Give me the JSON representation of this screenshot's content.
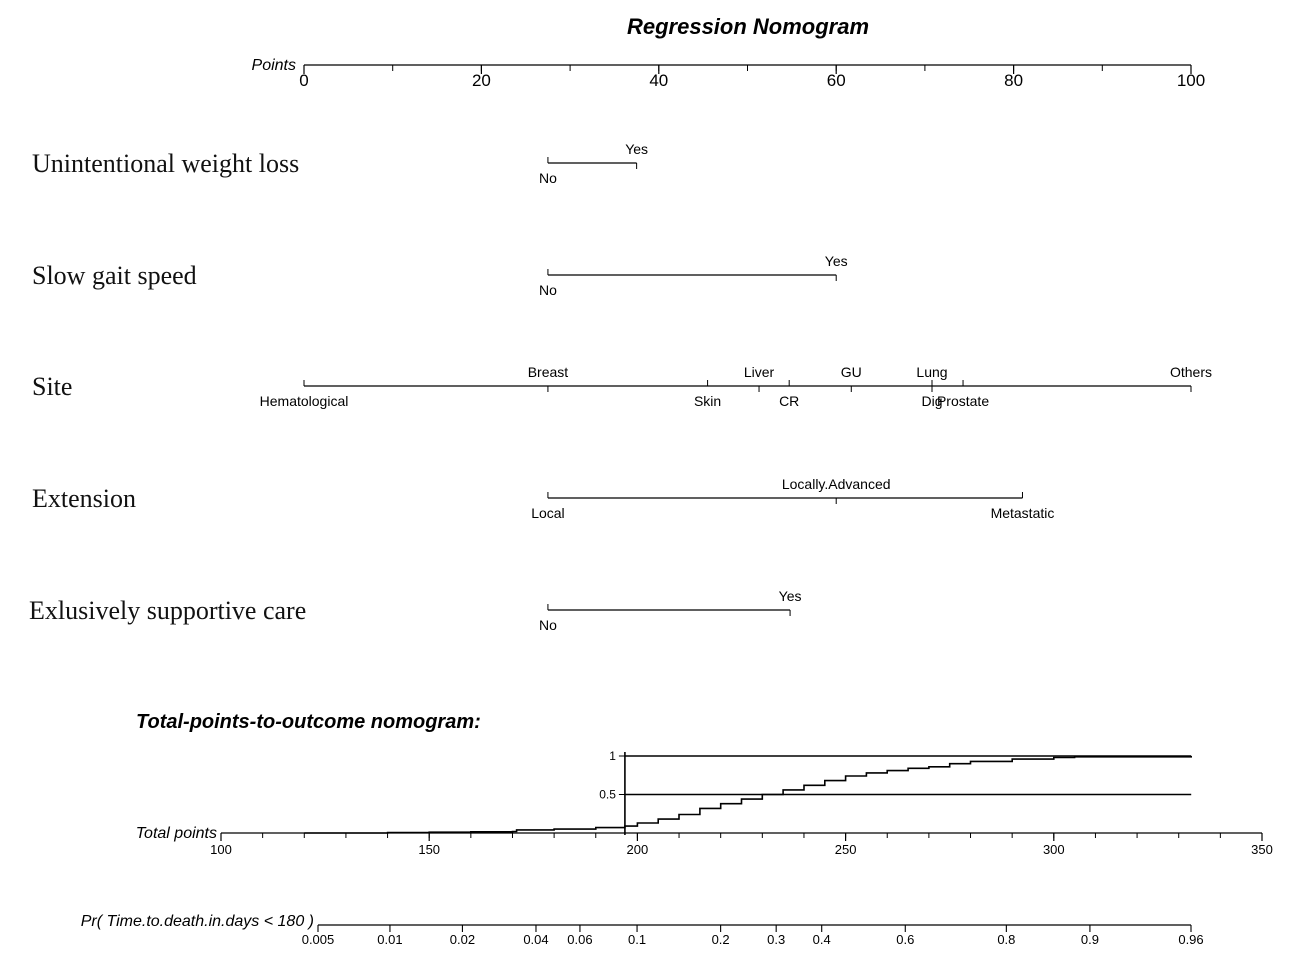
{
  "chart_data": {
    "type": "nomogram",
    "title": "Regression Nomogram",
    "points_axis": {
      "label": "Points",
      "range": [
        0,
        100
      ],
      "ticks": [
        0,
        20,
        40,
        60,
        80,
        100
      ]
    },
    "variables": [
      {
        "name": "Unintentional weight loss",
        "levels": [
          {
            "label": "No",
            "points": 27.5,
            "pos": "below"
          },
          {
            "label": "Yes",
            "points": 37.5,
            "pos": "above"
          }
        ]
      },
      {
        "name": "Slow gait speed",
        "levels": [
          {
            "label": "No",
            "points": 27.5,
            "pos": "below"
          },
          {
            "label": "Yes",
            "points": 60.0,
            "pos": "above"
          }
        ]
      },
      {
        "name": "Site",
        "levels": [
          {
            "label": "Hematological",
            "points": 0,
            "pos": "below"
          },
          {
            "label": "Breast",
            "points": 27.5,
            "pos": "above"
          },
          {
            "label": "Skin",
            "points": 45.5,
            "pos": "below"
          },
          {
            "label": "Liver",
            "points": 51.3,
            "pos": "above"
          },
          {
            "label": "CR",
            "points": 54.7,
            "pos": "below"
          },
          {
            "label": "GU",
            "points": 61.7,
            "pos": "above"
          },
          {
            "label": "Lung",
            "points": 70.8,
            "pos": "above"
          },
          {
            "label": "Dig",
            "points": 70.8,
            "pos": "below"
          },
          {
            "label": "Prostate",
            "points": 74.3,
            "pos": "below"
          },
          {
            "label": "Others",
            "points": 100,
            "pos": "above"
          }
        ]
      },
      {
        "name": "Extension",
        "levels": [
          {
            "label": "Local",
            "points": 27.5,
            "pos": "below"
          },
          {
            "label": "Locally.Advanced",
            "points": 60.0,
            "pos": "above"
          },
          {
            "label": "Metastatic",
            "points": 81.0,
            "pos": "below"
          }
        ]
      },
      {
        "name": "Exlusively supportive care",
        "levels": [
          {
            "label": "No",
            "points": 27.5,
            "pos": "below"
          },
          {
            "label": "Yes",
            "points": 54.8,
            "pos": "above"
          }
        ]
      }
    ],
    "subtitle": "Total-points-to-outcome nomogram:",
    "total_points_axis": {
      "label": "Total points",
      "range": [
        100,
        350
      ],
      "ticks": [
        100,
        150,
        200,
        250,
        300,
        350
      ]
    },
    "inset": {
      "y_ticks": [
        {
          "label": "1",
          "value": 1
        },
        {
          "label": "0.5",
          "value": 0.5
        }
      ],
      "x_start": 197,
      "x_end": 333,
      "curve": [
        [
          120,
          0.0
        ],
        [
          140,
          0.005
        ],
        [
          150,
          0.01
        ],
        [
          160,
          0.015
        ],
        [
          170,
          0.02
        ],
        [
          171,
          0.04
        ],
        [
          180,
          0.05
        ],
        [
          190,
          0.07
        ],
        [
          197,
          0.09
        ],
        [
          200,
          0.13
        ],
        [
          205,
          0.18
        ],
        [
          210,
          0.24
        ],
        [
          215,
          0.32
        ],
        [
          220,
          0.38
        ],
        [
          225,
          0.44
        ],
        [
          230,
          0.5
        ],
        [
          235,
          0.56
        ],
        [
          240,
          0.62
        ],
        [
          245,
          0.68
        ],
        [
          250,
          0.74
        ],
        [
          255,
          0.78
        ],
        [
          260,
          0.81
        ],
        [
          265,
          0.84
        ],
        [
          270,
          0.86
        ],
        [
          275,
          0.9
        ],
        [
          280,
          0.93
        ],
        [
          290,
          0.96
        ],
        [
          300,
          0.98
        ],
        [
          305,
          0.99
        ],
        [
          333,
          1.0
        ]
      ]
    },
    "probability_axis": {
      "label": "Pr( Time.to.death.in.days < 180 )",
      "ticks": [
        {
          "label": "0.005",
          "value": 0.005
        },
        {
          "label": "0.01",
          "value": 0.01
        },
        {
          "label": "0.02",
          "value": 0.02
        },
        {
          "label": "0.04",
          "value": 0.04
        },
        {
          "label": "0.06",
          "value": 0.06
        },
        {
          "label": "0.1",
          "value": 0.1
        },
        {
          "label": "0.2",
          "value": 0.2
        },
        {
          "label": "0.3",
          "value": 0.3
        },
        {
          "label": "0.4",
          "value": 0.4
        },
        {
          "label": "0.6",
          "value": 0.6
        },
        {
          "label": "0.8",
          "value": 0.8
        },
        {
          "label": "0.9",
          "value": 0.9
        },
        {
          "label": "0.96",
          "value": 0.96
        }
      ]
    }
  }
}
